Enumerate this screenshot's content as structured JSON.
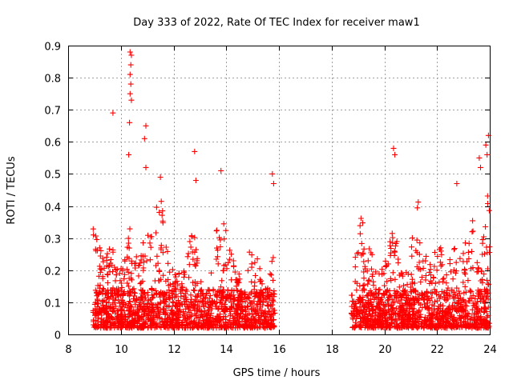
{
  "chart_data": {
    "type": "scatter",
    "title": "Day 333 of 2022, Rate Of TEC Index for receiver maw1",
    "xlabel": "GPS time / hours",
    "ylabel": "ROTI / TECUs",
    "xlim": [
      8,
      24
    ],
    "ylim": [
      0,
      0.9
    ],
    "xticks": [
      "8",
      "10",
      "12",
      "14",
      "16",
      "18",
      "20",
      "22",
      "24"
    ],
    "yticks": [
      "0",
      "0.1",
      "0.2",
      "0.3",
      "0.4",
      "0.5",
      "0.6",
      "0.7",
      "0.8",
      "0.9"
    ],
    "grid": true,
    "marker": "plus",
    "color": "#ff0000",
    "data_segments": [
      {
        "x_range": [
          8.95,
          15.85
        ]
      },
      {
        "x_range": [
          18.75,
          24.0
        ]
      }
    ],
    "notable_points": [
      {
        "x": 9.7,
        "y": 0.69
      },
      {
        "x": 10.35,
        "y": 0.88
      },
      {
        "x": 10.4,
        "y": 0.87
      },
      {
        "x": 10.38,
        "y": 0.84
      },
      {
        "x": 10.35,
        "y": 0.81
      },
      {
        "x": 10.38,
        "y": 0.78
      },
      {
        "x": 10.35,
        "y": 0.75
      },
      {
        "x": 10.4,
        "y": 0.73
      },
      {
        "x": 10.33,
        "y": 0.66
      },
      {
        "x": 10.3,
        "y": 0.56
      },
      {
        "x": 10.95,
        "y": 0.65
      },
      {
        "x": 10.9,
        "y": 0.61
      },
      {
        "x": 10.95,
        "y": 0.52
      },
      {
        "x": 11.5,
        "y": 0.49
      },
      {
        "x": 12.8,
        "y": 0.57
      },
      {
        "x": 12.85,
        "y": 0.48
      },
      {
        "x": 13.8,
        "y": 0.51
      },
      {
        "x": 15.75,
        "y": 0.5
      },
      {
        "x": 15.8,
        "y": 0.47
      },
      {
        "x": 20.35,
        "y": 0.58
      },
      {
        "x": 20.4,
        "y": 0.56
      },
      {
        "x": 23.95,
        "y": 0.62
      },
      {
        "x": 23.85,
        "y": 0.59
      },
      {
        "x": 23.9,
        "y": 0.56
      },
      {
        "x": 23.6,
        "y": 0.55
      },
      {
        "x": 23.65,
        "y": 0.52
      },
      {
        "x": 22.75,
        "y": 0.47
      }
    ]
  }
}
